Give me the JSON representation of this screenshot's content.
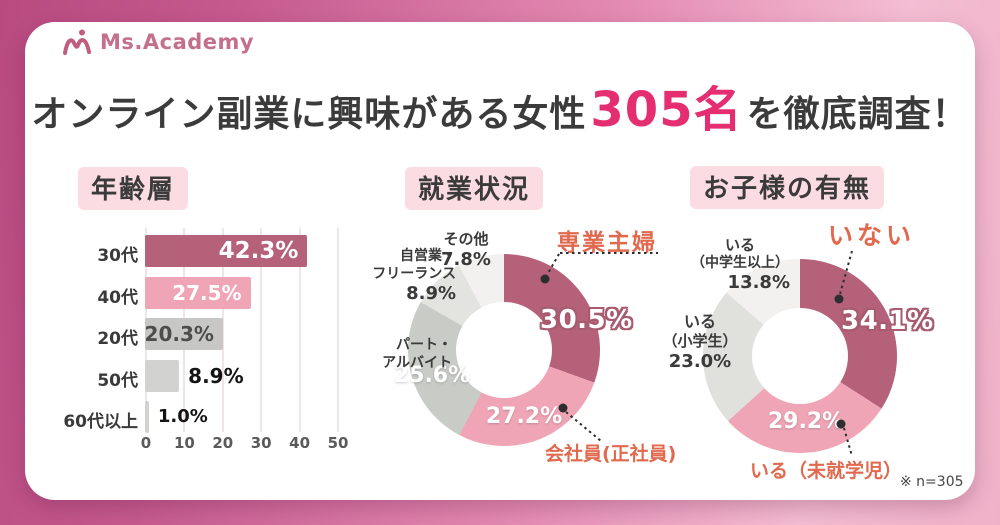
{
  "page": {
    "note": "※ n=305",
    "bg_from": "#b84a80",
    "bg_to": "#f4bdd2",
    "card_color": "#ffffff"
  },
  "logo": {
    "text": "Ms.Academy",
    "color": "#c4708d"
  },
  "title": {
    "pre": "オンライン副業に興味がある女性",
    "highlight": "305名",
    "post": "を徹底調査！",
    "text_color": "#3b3b3b",
    "highlight_color": "#e52e72"
  },
  "chart_data": [
    {
      "type": "bar",
      "title": "年齢層",
      "orientation": "horizontal",
      "categories": [
        "30代",
        "40代",
        "20代",
        "50代",
        "60代以上"
      ],
      "values": [
        42.3,
        27.5,
        20.3,
        8.9,
        1.0
      ],
      "value_labels": [
        "42.3%",
        "27.5%",
        "20.3%",
        "8.9%",
        "1.0%"
      ],
      "bar_colors": [
        "#b5617a",
        "#f0a5b6",
        "#c7c7c5",
        "#d2d2d0",
        "#d2d2d0"
      ],
      "value_inside": [
        true,
        true,
        true,
        false,
        false
      ],
      "value_colors": [
        "#ffffff",
        "#ffffff",
        "#4d4d4d",
        "#141414",
        "#141414"
      ],
      "xlabel": "",
      "ylabel": "",
      "xlim": [
        0,
        50
      ],
      "x_ticks": [
        0,
        10,
        20,
        30,
        40,
        50
      ],
      "grid": true
    },
    {
      "type": "donut",
      "title": "就業状況",
      "segments": [
        {
          "label": "専業主婦",
          "value": 30.5,
          "display": "30.5%",
          "color": "#b5617a",
          "callout_color": "#e0694e"
        },
        {
          "label": "会社員(正社員)",
          "value": 27.2,
          "display": "27.2%",
          "color": "#f0a5b6",
          "callout_color": "#e0694e"
        },
        {
          "label": "パート・アルバイト",
          "label_lines": [
            "パート・",
            "アルバイト"
          ],
          "value": 25.6,
          "display": "25.6%",
          "color": "#c9cbc6"
        },
        {
          "label": "自営業・フリーランス",
          "label_lines": [
            "自営業・",
            "フリーランス"
          ],
          "value": 8.9,
          "display": "8.9%",
          "color": "#e3e3e0"
        },
        {
          "label": "その他",
          "value": 7.8,
          "display": "7.8%",
          "color": "#f2f1ef"
        }
      ]
    },
    {
      "type": "donut",
      "title": "お子様の有無",
      "segments": [
        {
          "label": "いない",
          "value": 34.1,
          "display": "34.1%",
          "color": "#b5617a",
          "callout_color": "#e0694e"
        },
        {
          "label": "いる（未就学児）",
          "value": 29.2,
          "display": "29.2%",
          "color": "#f0a5b6",
          "callout_color": "#e0694e"
        },
        {
          "label": "いる（小学生）",
          "label_lines": [
            "いる",
            "（小学生）"
          ],
          "value": 23.0,
          "display": "23.0%",
          "color": "#e0e0dd"
        },
        {
          "label": "いる（中学生以上）",
          "label_lines": [
            "いる",
            "（中学生以上）"
          ],
          "value": 13.8,
          "display": "13.8%",
          "color": "#f2f1ef"
        }
      ]
    }
  ]
}
